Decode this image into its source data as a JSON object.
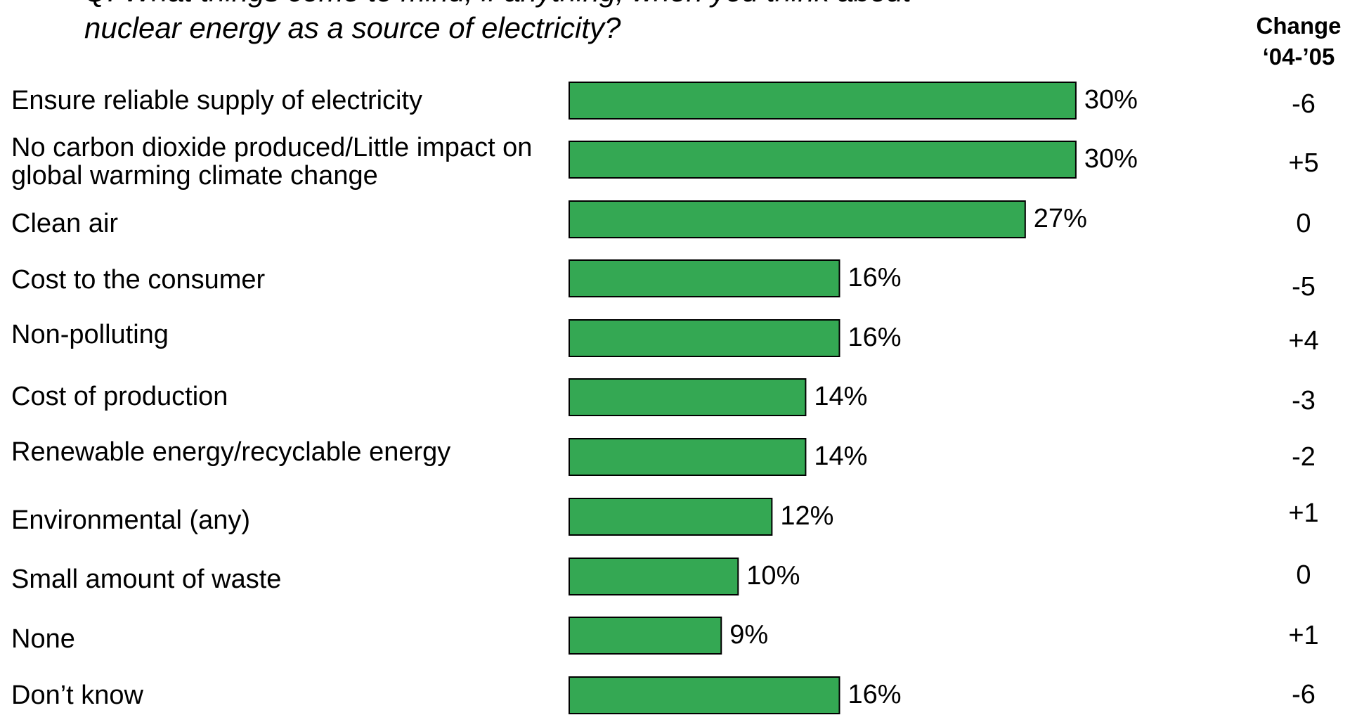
{
  "question": {
    "line1": "Q. What things come to mind, if anything, when you think about",
    "line2": "nuclear energy as a source of electricity?"
  },
  "change_header": {
    "line1": "Change",
    "line2": "‘04-’05"
  },
  "colors": {
    "bar": "#34a853",
    "bar_border": "#000000"
  },
  "chart_data": {
    "type": "bar",
    "orientation": "horizontal",
    "title": "",
    "xlabel": "",
    "ylabel": "",
    "categories": [
      "Ensure reliable supply of electricity",
      "No carbon dioxide produced/Little impact on global warming climate change",
      "Clean air",
      "Cost to the consumer",
      "Non-polluting",
      "Cost of production",
      "Renewable energy/recyclable energy",
      "Environmental (any)",
      "Small amount of waste",
      "None",
      "Don’t know"
    ],
    "values": [
      30,
      30,
      27,
      16,
      16,
      14,
      14,
      12,
      10,
      9,
      16
    ],
    "value_labels": [
      "30%",
      "30%",
      "27%",
      "16%",
      "16%",
      "14%",
      "14%",
      "12%",
      "10%",
      "9%",
      "16%"
    ],
    "change_04_05": [
      "-6",
      "+5",
      "0",
      "-5",
      "+4",
      "-3",
      "-2",
      "+1",
      "0",
      "+1",
      "-6"
    ],
    "xlim": [
      0,
      30
    ],
    "grid": false,
    "legend": "none"
  }
}
